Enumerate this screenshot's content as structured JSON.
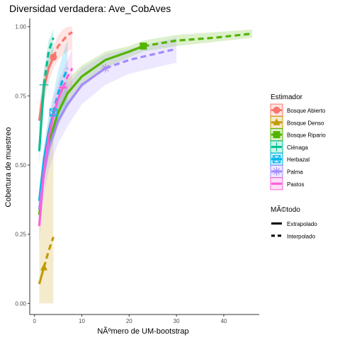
{
  "chart_data": {
    "type": "line",
    "title": "Diversidad verdadera: Ave_CobAves",
    "xlabel": "NÃºmero de UM-bootstrap",
    "ylabel": "Cobertura de muestreo",
    "xlim": [
      -1,
      47.5
    ],
    "ylim": [
      -0.04,
      1.03
    ],
    "x_ticks": [
      0,
      10,
      20,
      30,
      40
    ],
    "y_ticks": [
      0.0,
      0.25,
      0.5,
      0.75,
      1.0
    ],
    "x_tick_labels": [
      "0",
      "10",
      "20",
      "30",
      "40"
    ],
    "y_tick_labels": [
      "0.00",
      "0.25",
      "0.50",
      "0.75",
      "1.00"
    ],
    "grid": false,
    "legend_position": "right",
    "legend_title": "Estimador",
    "series": [
      {
        "name": "Bosque Abierto",
        "color": "#F8766D",
        "marker": "circle",
        "observed": [
          4,
          0.89
        ],
        "interpolated": [
          [
            1,
            0.66
          ],
          [
            2,
            0.78
          ],
          [
            3,
            0.85
          ],
          [
            4,
            0.89
          ]
        ],
        "extrapolated": [
          [
            4,
            0.89
          ],
          [
            5,
            0.93
          ],
          [
            6,
            0.95
          ],
          [
            7,
            0.97
          ],
          [
            8,
            0.98
          ]
        ],
        "band_lower": [
          0.6,
          0.72,
          0.8,
          0.85,
          0.88,
          0.9,
          0.91,
          0.92
        ],
        "band_upper": [
          0.72,
          0.84,
          0.9,
          0.93,
          0.97,
          0.99,
          1.0,
          1.0
        ]
      },
      {
        "name": "Bosque Denso",
        "color": "#C49A00",
        "marker": "triangle",
        "observed": [
          2,
          0.13
        ],
        "interpolated": [
          [
            1,
            0.07
          ],
          [
            2,
            0.13
          ]
        ],
        "extrapolated": [
          [
            2,
            0.13
          ],
          [
            3,
            0.19
          ],
          [
            4,
            0.24
          ]
        ],
        "band_lower": [
          0.0,
          0.0,
          0.0,
          0.0
        ],
        "band_upper": [
          0.25,
          0.4,
          0.55,
          0.62
        ]
      },
      {
        "name": "Bosque Ripario",
        "color": "#53B400",
        "marker": "square",
        "observed": [
          23,
          0.93
        ],
        "interpolated": [
          [
            1,
            0.32
          ],
          [
            2,
            0.48
          ],
          [
            3,
            0.58
          ],
          [
            5,
            0.69
          ],
          [
            7,
            0.76
          ],
          [
            10,
            0.82
          ],
          [
            15,
            0.88
          ],
          [
            20,
            0.91
          ],
          [
            23,
            0.93
          ]
        ],
        "extrapolated": [
          [
            23,
            0.93
          ],
          [
            30,
            0.95
          ],
          [
            38,
            0.96
          ],
          [
            46,
            0.975
          ]
        ],
        "band_lower": [
          0.27,
          0.43,
          0.53,
          0.64,
          0.71,
          0.78,
          0.85,
          0.89,
          0.91,
          0.93,
          0.945,
          0.96
        ],
        "band_upper": [
          0.37,
          0.53,
          0.63,
          0.74,
          0.81,
          0.86,
          0.91,
          0.93,
          0.95,
          0.97,
          0.98,
          0.99
        ]
      },
      {
        "name": "Ciénaga",
        "color": "#00C094",
        "marker": "cross",
        "observed": [
          2,
          0.79
        ],
        "interpolated": [
          [
            1,
            0.55
          ],
          [
            2,
            0.79
          ]
        ],
        "extrapolated": [
          [
            2,
            0.79
          ],
          [
            3,
            0.91
          ],
          [
            4,
            0.96
          ]
        ],
        "band_lower": [
          0.5,
          0.73,
          0.84,
          0.89
        ],
        "band_upper": [
          0.6,
          0.84,
          0.95,
          0.99
        ]
      },
      {
        "name": "Herbazal",
        "color": "#00B6EB",
        "marker": "square-x",
        "observed": [
          4,
          0.69
        ],
        "interpolated": [
          [
            1,
            0.37
          ],
          [
            2,
            0.52
          ],
          [
            3,
            0.62
          ],
          [
            4,
            0.69
          ]
        ],
        "extrapolated": [
          [
            4,
            0.69
          ],
          [
            5,
            0.76
          ],
          [
            6,
            0.81
          ],
          [
            7,
            0.85
          ]
        ],
        "band_lower": [
          0.33,
          0.47,
          0.56,
          0.62,
          0.66,
          0.7,
          0.73
        ],
        "band_upper": [
          0.41,
          0.57,
          0.68,
          0.76,
          0.84,
          0.9,
          0.95
        ]
      },
      {
        "name": "Palma",
        "color": "#A58AFF",
        "marker": "asterisk",
        "observed": [
          15,
          0.85
        ],
        "interpolated": [
          [
            1,
            0.34
          ],
          [
            2,
            0.47
          ],
          [
            3,
            0.56
          ],
          [
            5,
            0.66
          ],
          [
            7,
            0.72
          ],
          [
            10,
            0.79
          ],
          [
            15,
            0.85
          ]
        ],
        "extrapolated": [
          [
            15,
            0.85
          ],
          [
            20,
            0.88
          ],
          [
            25,
            0.9
          ],
          [
            30,
            0.92
          ]
        ],
        "band_lower": [
          0.26,
          0.39,
          0.48,
          0.58,
          0.64,
          0.72,
          0.79,
          0.83,
          0.85,
          0.87
        ],
        "band_upper": [
          0.42,
          0.55,
          0.64,
          0.73,
          0.79,
          0.85,
          0.9,
          0.92,
          0.94,
          0.96
        ]
      },
      {
        "name": "Pastos",
        "color": "#FB61D7",
        "marker": "line",
        "observed": [
          6,
          0.78
        ],
        "interpolated": [
          [
            1,
            0.28
          ],
          [
            2,
            0.48
          ],
          [
            3,
            0.6
          ],
          [
            4,
            0.68
          ],
          [
            5,
            0.74
          ],
          [
            6,
            0.78
          ]
        ],
        "extrapolated": [
          [
            6,
            0.78
          ],
          [
            7,
            0.82
          ],
          [
            8,
            0.85
          ]
        ],
        "band_lower": [
          0.22,
          0.42,
          0.54,
          0.62,
          0.68,
          0.72,
          0.75,
          0.77
        ],
        "band_upper": [
          0.34,
          0.54,
          0.66,
          0.74,
          0.8,
          0.84,
          0.88,
          0.92
        ]
      }
    ],
    "method_legend_title": "MÃ©todo",
    "method_legend": [
      {
        "label": "Extrapolado",
        "style": "solid"
      },
      {
        "label": "Interpolado",
        "style": "dashed"
      }
    ]
  }
}
